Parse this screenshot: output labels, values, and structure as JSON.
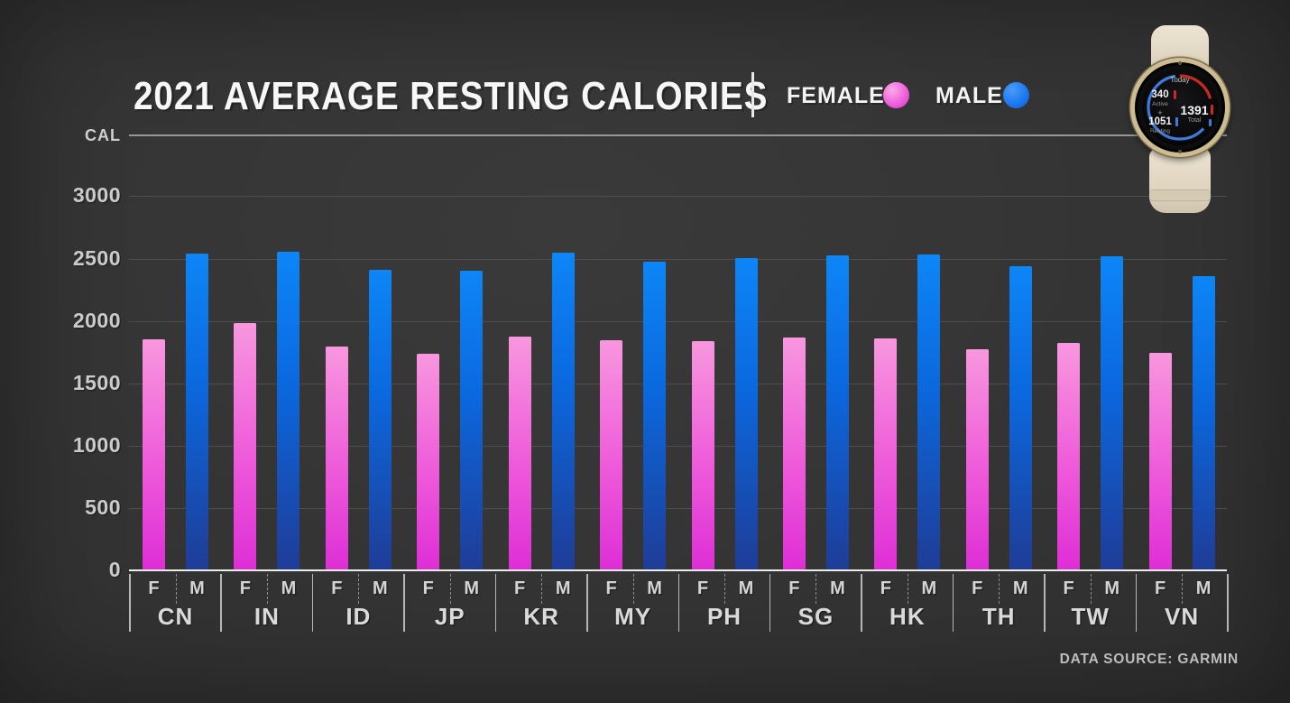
{
  "title": "2021 AVERAGE RESTING CALORIES",
  "legend": {
    "female_label": "FEMALE",
    "male_label": "MALE"
  },
  "y_axis": {
    "unit_label": "CAL"
  },
  "x_axis_zero_label": "0",
  "source": "DATA SOURCE: GARMIN",
  "colors": {
    "background": "#323232",
    "female_top": "#f897de",
    "female_mid": "#ee5ada",
    "female_bottom": "#de2ed6",
    "male_top": "#0d86f7",
    "male_mid": "#0b68de",
    "male_bottom": "#1f3c97",
    "gridline": "#4e4e4e",
    "baseline": "#ececec"
  },
  "watch": {
    "screen": {
      "date_label": "Today",
      "active_value": "340",
      "active_label": "Active",
      "plus_sign": "+",
      "resting_value": "1051",
      "resting_label": "Resting",
      "total_value": "1391",
      "total_label": "Total"
    }
  },
  "chart_data": {
    "type": "bar",
    "title": "2021 AVERAGE RESTING CALORIES",
    "ylabel": "CAL",
    "ylim": [
      0,
      3500
    ],
    "grid": true,
    "legend_position": "top",
    "y_ticks": [
      3000,
      2500,
      2000,
      1500,
      1000,
      500,
      0
    ],
    "categories": [
      "CN",
      "IN",
      "ID",
      "JP",
      "KR",
      "MY",
      "PH",
      "SG",
      "HK",
      "TH",
      "TW",
      "VN"
    ],
    "bar_sublabels": {
      "female": "F",
      "male": "M"
    },
    "series": [
      {
        "name": "FEMALE",
        "key": "female",
        "values": [
          1850,
          1985,
          1795,
          1735,
          1875,
          1845,
          1840,
          1865,
          1860,
          1775,
          1825,
          1745
        ]
      },
      {
        "name": "MALE",
        "key": "male",
        "values": [
          2540,
          2555,
          2410,
          2400,
          2545,
          2475,
          2505,
          2525,
          2530,
          2440,
          2520,
          2360
        ]
      }
    ]
  }
}
